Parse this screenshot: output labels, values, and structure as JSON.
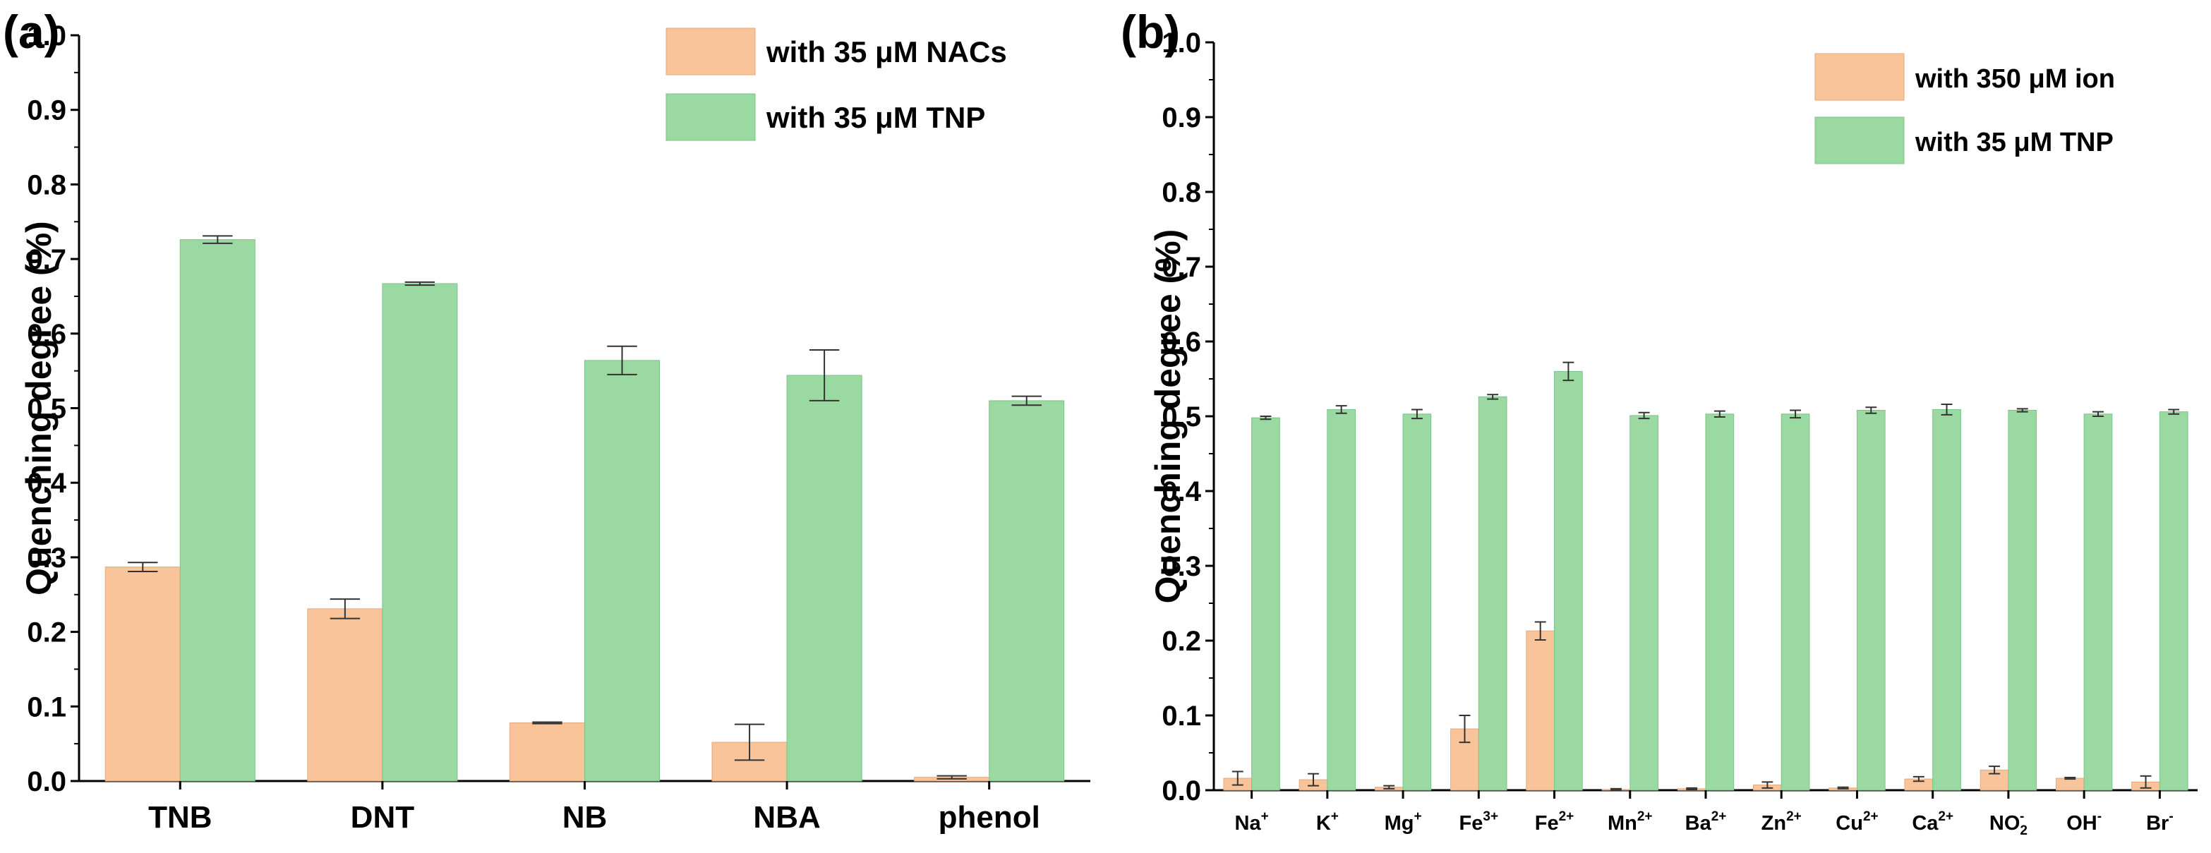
{
  "colors": {
    "orange": "#f9c49a",
    "orange_stroke": "#e6a87c",
    "green": "#9ad9a2",
    "green_stroke": "#7cc486",
    "axis": "#000000",
    "errorbar": "#333333"
  },
  "chart_data": [
    {
      "type": "bar",
      "panel": "(a)",
      "ylabel": "Quenching degree (%)",
      "xlabel": "",
      "ylim": [
        0,
        1.0
      ],
      "yticks": [
        "0.0",
        "0.1",
        "0.2",
        "0.3",
        "0.4",
        "0.5",
        "0.6",
        "0.7",
        "0.8",
        "0.9",
        "1.0"
      ],
      "categories": [
        "TNB",
        "DNT",
        "NB",
        "NBA",
        "phenol"
      ],
      "legend_position": "top-right",
      "series": [
        {
          "name": "with 35 μM NACs",
          "color": "#f9c49a",
          "values": [
            0.287,
            0.231,
            0.078,
            0.052,
            0.005
          ],
          "errors": [
            0.006,
            0.013,
            0.001,
            0.024,
            0.002
          ]
        },
        {
          "name": "with 35 μM TNP",
          "color": "#9ad9a2",
          "values": [
            0.726,
            0.667,
            0.564,
            0.544,
            0.51
          ],
          "errors": [
            0.005,
            0.002,
            0.019,
            0.034,
            0.006
          ]
        }
      ]
    },
    {
      "type": "bar",
      "panel": "(b)",
      "ylabel": "Quenching degree (%)",
      "xlabel": "",
      "ylim": [
        0,
        1.0
      ],
      "yticks": [
        "0.0",
        "0.1",
        "0.2",
        "0.3",
        "0.4",
        "0.5",
        "0.6",
        "0.7",
        "0.8",
        "0.9",
        "1.0"
      ],
      "categories": [
        {
          "base": "Na",
          "sup": "+",
          "sub": ""
        },
        {
          "base": "K",
          "sup": "+",
          "sub": ""
        },
        {
          "base": "Mg",
          "sup": "+",
          "sub": ""
        },
        {
          "base": "Fe",
          "sup": "3+",
          "sub": ""
        },
        {
          "base": "Fe",
          "sup": "2+",
          "sub": ""
        },
        {
          "base": "Mn",
          "sup": "2+",
          "sub": ""
        },
        {
          "base": "Ba",
          "sup": "2+",
          "sub": ""
        },
        {
          "base": "Zn",
          "sup": "2+",
          "sub": ""
        },
        {
          "base": "Cu",
          "sup": "2+",
          "sub": ""
        },
        {
          "base": "Ca",
          "sup": "2+",
          "sub": ""
        },
        {
          "base": "NO",
          "sup": "-",
          "sub": "2"
        },
        {
          "base": "OH",
          "sup": "-",
          "sub": ""
        },
        {
          "base": "Br",
          "sup": "-",
          "sub": ""
        }
      ],
      "legend_position": "top-right",
      "series": [
        {
          "name": "with 350 μM ion",
          "color": "#f9c49a",
          "values": [
            0.016,
            0.014,
            0.004,
            0.082,
            0.213,
            0.001,
            0.002,
            0.007,
            0.003,
            0.015,
            0.027,
            0.016,
            0.011
          ],
          "errors": [
            0.009,
            0.008,
            0.002,
            0.018,
            0.012,
            0.001,
            0.001,
            0.004,
            0.001,
            0.003,
            0.005,
            0.001,
            0.008
          ]
        },
        {
          "name": "with 35 μM TNP",
          "color": "#9ad9a2",
          "values": [
            0.498,
            0.509,
            0.503,
            0.526,
            0.56,
            0.501,
            0.503,
            0.503,
            0.508,
            0.509,
            0.508,
            0.503,
            0.506
          ],
          "errors": [
            0.002,
            0.005,
            0.006,
            0.003,
            0.012,
            0.004,
            0.004,
            0.005,
            0.004,
            0.007,
            0.002,
            0.003,
            0.003
          ]
        }
      ]
    }
  ]
}
